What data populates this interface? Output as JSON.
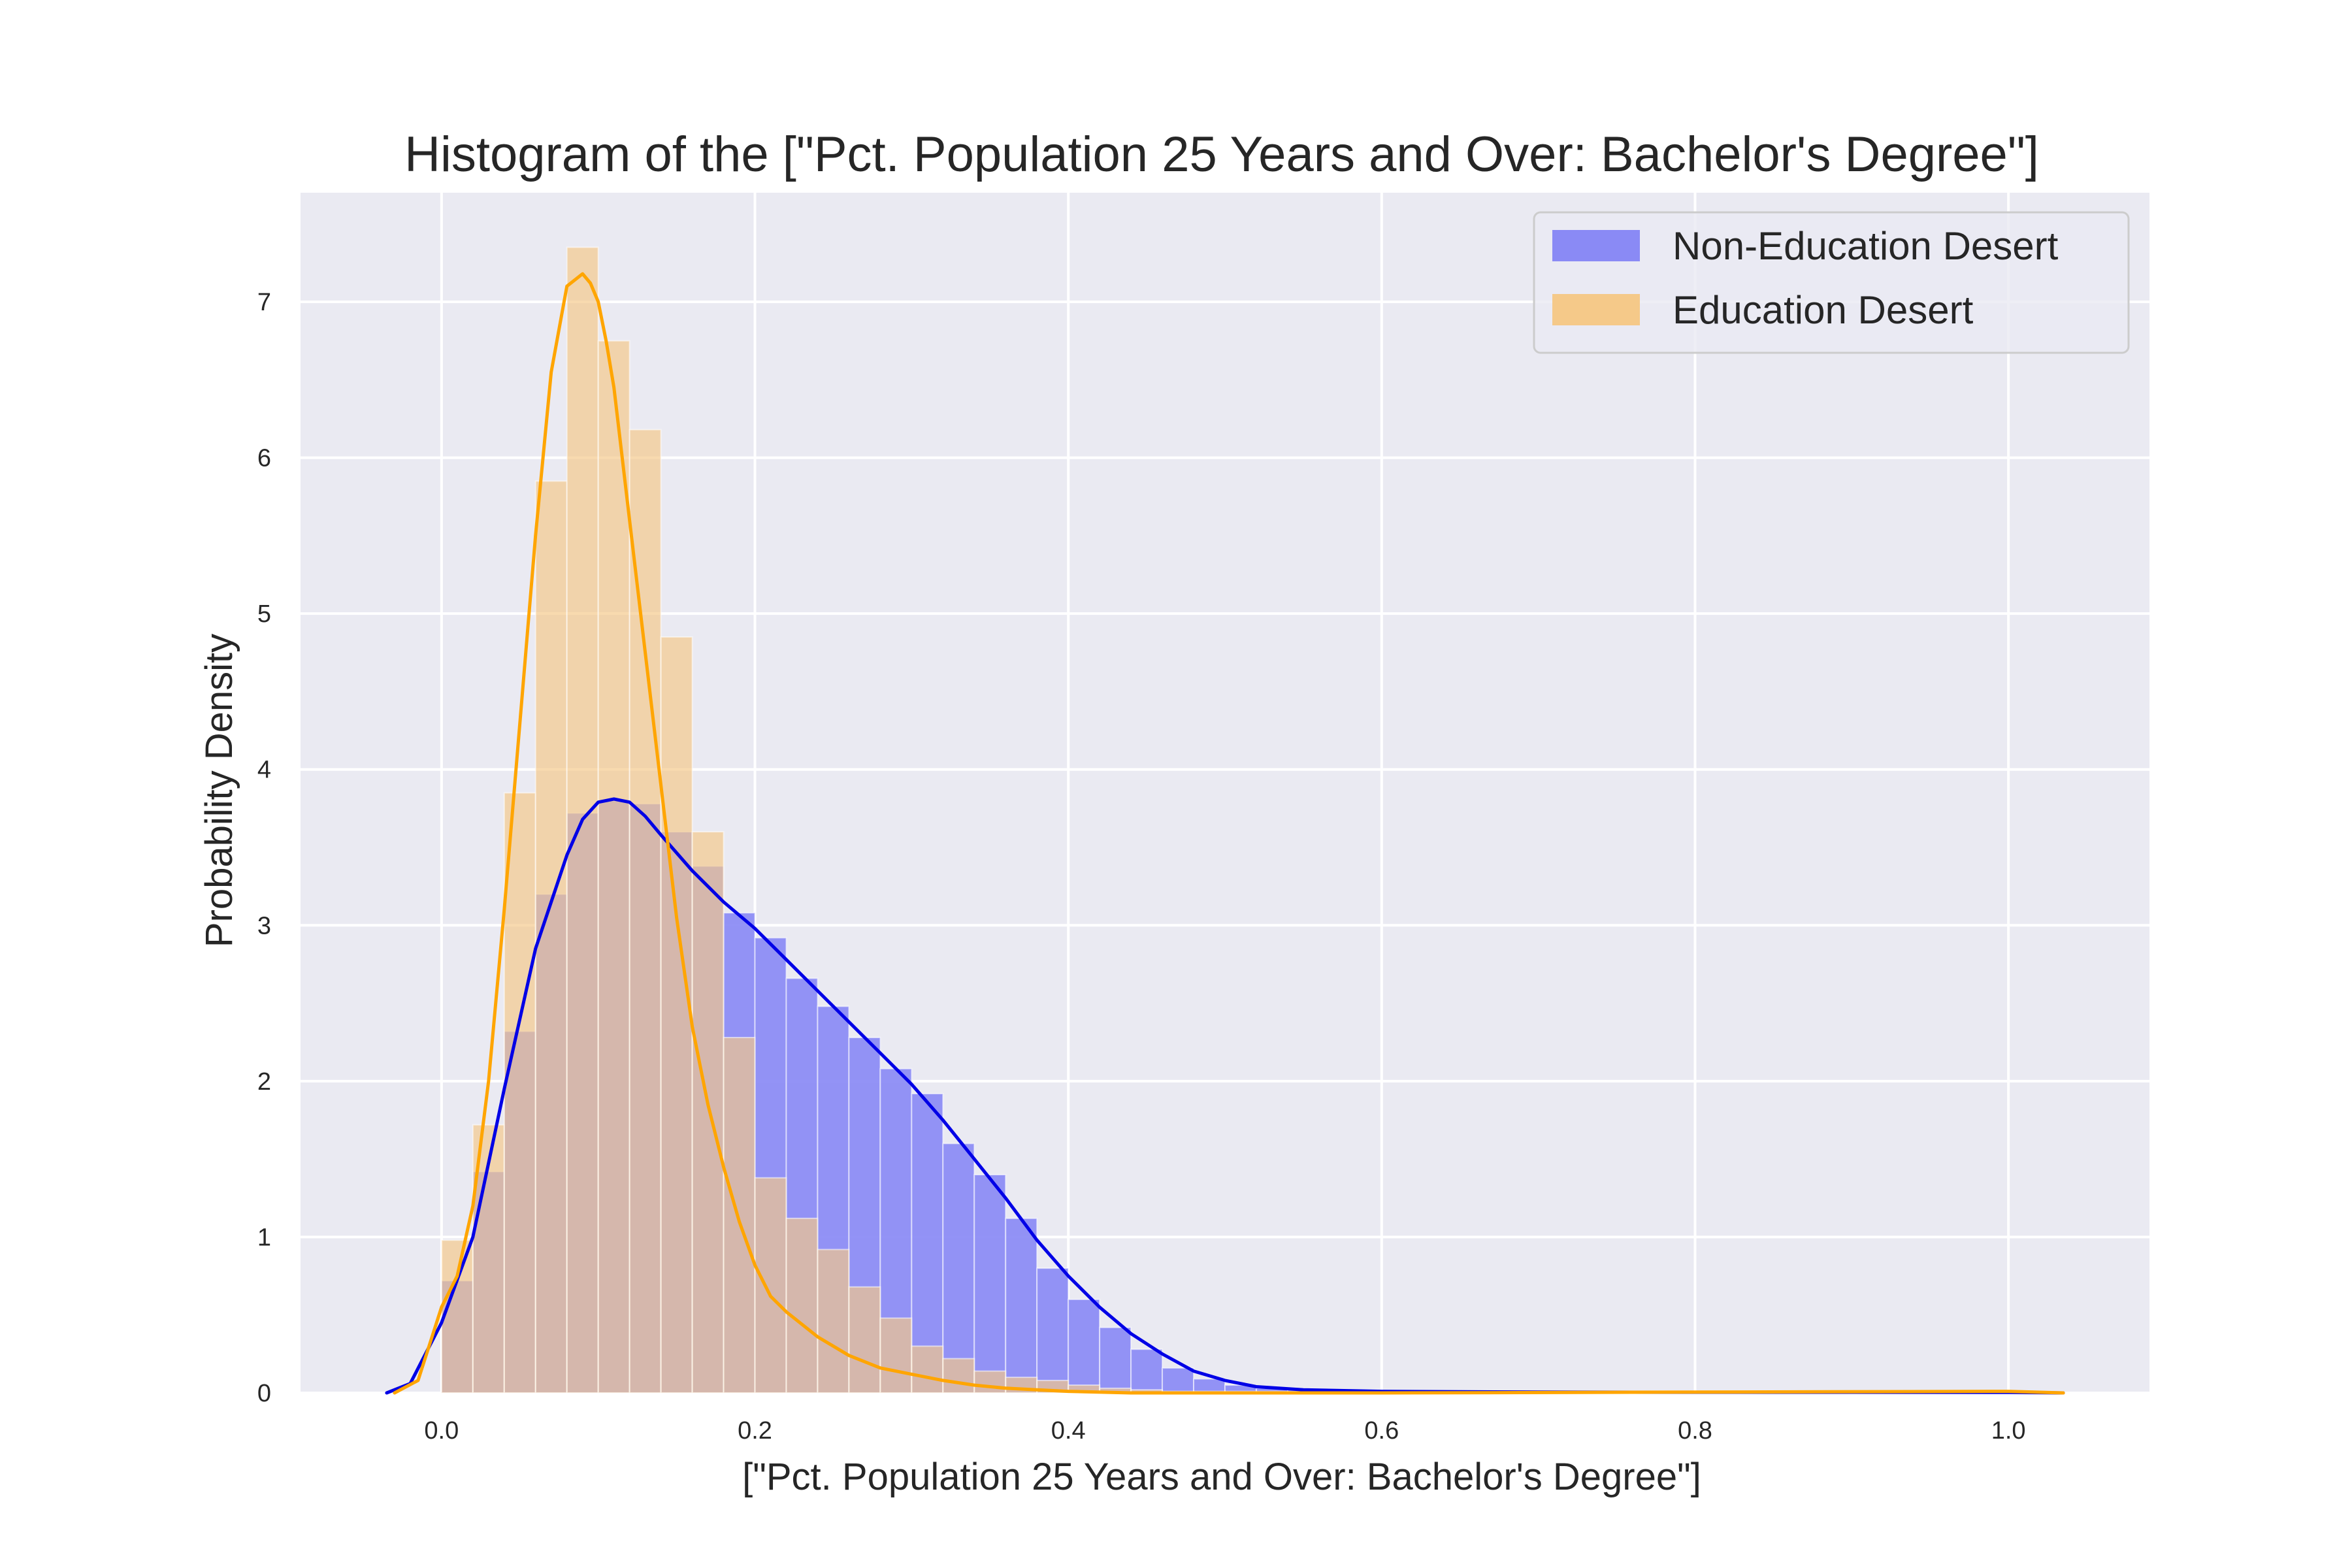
{
  "chart_data": {
    "type": "histogram",
    "title": "Histogram of the [\"Pct. Population 25 Years and Over: Bachelor's Degree\"]",
    "xlabel": "[\"Pct. Population 25 Years and Over: Bachelor's Degree\"]",
    "ylabel": "Probability Density",
    "xlim": [
      -0.09,
      1.09
    ],
    "ylim": [
      0,
      7.7
    ],
    "xticks": [
      "0.0",
      "0.2",
      "0.4",
      "0.6",
      "0.8",
      "1.0"
    ],
    "yticks": [
      "0",
      "1",
      "2",
      "3",
      "4",
      "5",
      "6",
      "7"
    ],
    "grid": true,
    "legend_position": "upper right",
    "bin_width": 0.02,
    "bin_starts": [
      0.0,
      0.02,
      0.04,
      0.06,
      0.08,
      0.1,
      0.12,
      0.14,
      0.16,
      0.18,
      0.2,
      0.22,
      0.24,
      0.26,
      0.28,
      0.3,
      0.32,
      0.34,
      0.36,
      0.38,
      0.4,
      0.42,
      0.44,
      0.46,
      0.48,
      0.5,
      0.52,
      0.54
    ],
    "series": [
      {
        "name": "Non-Education Desert",
        "hist_color": "#8a8af5",
        "line_color": "#0000e6",
        "values": [
          0.72,
          1.42,
          2.32,
          3.2,
          3.72,
          3.8,
          3.78,
          3.6,
          3.38,
          3.08,
          2.92,
          2.66,
          2.48,
          2.28,
          2.08,
          1.92,
          1.6,
          1.4,
          1.12,
          0.8,
          0.6,
          0.42,
          0.28,
          0.16,
          0.09,
          0.05,
          0.03,
          0.02
        ],
        "kde_x": [
          -0.035,
          -0.02,
          0.0,
          0.02,
          0.04,
          0.06,
          0.08,
          0.09,
          0.1,
          0.11,
          0.12,
          0.13,
          0.14,
          0.16,
          0.18,
          0.2,
          0.22,
          0.24,
          0.26,
          0.28,
          0.3,
          0.32,
          0.34,
          0.36,
          0.38,
          0.4,
          0.42,
          0.44,
          0.46,
          0.48,
          0.5,
          0.52,
          0.55,
          0.6,
          0.7,
          0.8,
          0.9,
          1.0,
          1.035
        ],
        "kde_y": [
          0.0,
          0.06,
          0.45,
          1.0,
          1.95,
          2.85,
          3.45,
          3.68,
          3.79,
          3.81,
          3.79,
          3.7,
          3.58,
          3.35,
          3.15,
          2.98,
          2.78,
          2.58,
          2.38,
          2.18,
          1.98,
          1.75,
          1.5,
          1.25,
          0.98,
          0.75,
          0.55,
          0.38,
          0.25,
          0.14,
          0.08,
          0.04,
          0.02,
          0.01,
          0.005,
          0.004,
          0.004,
          0.003,
          0.0
        ]
      },
      {
        "name": "Education Desert",
        "hist_color": "#f5c989",
        "line_color": "#ffa500",
        "values": [
          0.98,
          1.72,
          3.85,
          5.85,
          7.35,
          6.75,
          6.18,
          4.85,
          3.6,
          2.28,
          1.38,
          1.12,
          0.92,
          0.68,
          0.48,
          0.3,
          0.22,
          0.14,
          0.1,
          0.08,
          0.05,
          0.03,
          0.02,
          0.01,
          0.01,
          0.01,
          0.01,
          0.01
        ],
        "kde_x": [
          -0.03,
          -0.015,
          0.0,
          0.01,
          0.02,
          0.03,
          0.04,
          0.05,
          0.06,
          0.07,
          0.08,
          0.09,
          0.095,
          0.1,
          0.105,
          0.11,
          0.12,
          0.13,
          0.14,
          0.15,
          0.16,
          0.17,
          0.18,
          0.19,
          0.2,
          0.21,
          0.22,
          0.24,
          0.26,
          0.28,
          0.3,
          0.32,
          0.34,
          0.36,
          0.38,
          0.4,
          0.44,
          0.5,
          0.6,
          0.8,
          1.0,
          1.035
        ],
        "kde_y": [
          0.0,
          0.08,
          0.55,
          0.75,
          1.2,
          2.0,
          3.1,
          4.3,
          5.5,
          6.55,
          7.1,
          7.18,
          7.12,
          7.0,
          6.75,
          6.45,
          5.6,
          4.75,
          3.9,
          3.05,
          2.35,
          1.85,
          1.45,
          1.1,
          0.82,
          0.62,
          0.52,
          0.36,
          0.24,
          0.16,
          0.12,
          0.08,
          0.05,
          0.03,
          0.02,
          0.01,
          0.0,
          0.0,
          0.0,
          0.005,
          0.01,
          0.0
        ]
      }
    ]
  }
}
